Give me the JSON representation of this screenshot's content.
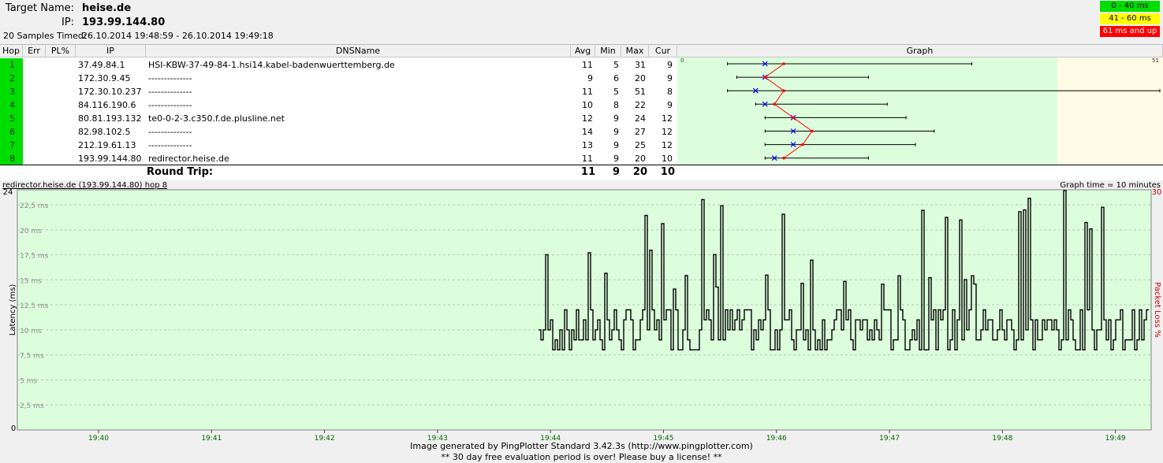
{
  "header": {
    "target_label": "Target Name:",
    "target_value": "heise.de",
    "ip_label": "IP:",
    "ip_value": "193.99.144.80",
    "samples_label": "20 Samples Timed:",
    "samples_value": "26.10.2014 19:48:59 - 26.10.2014 19:49:18"
  },
  "legend": [
    {
      "label": "0 - 40 ms",
      "color": "#00dd00"
    },
    {
      "label": "41 - 60 ms",
      "color": "#ffff00"
    },
    {
      "label": "61 ms and up",
      "color": "#ff0000"
    }
  ],
  "columns": {
    "hop": "Hop",
    "err": "Err",
    "pl": "PL%",
    "ip": "IP",
    "dns": "DNSName",
    "avg": "Avg",
    "min": "Min",
    "max": "Max",
    "cur": "Cur",
    "graph": "Graph"
  },
  "hops": [
    {
      "hop": "1",
      "ip": "37.49.84.1",
      "dns": "HSI-KBW-37-49-84-1.hsi14.kabel-badenwuerttemberg.de",
      "avg": "11",
      "min": "5",
      "max": "31",
      "cur": "9"
    },
    {
      "hop": "2",
      "ip": "172.30.9.45",
      "dns": "--------------",
      "avg": "9",
      "min": "6",
      "max": "20",
      "cur": "9"
    },
    {
      "hop": "3",
      "ip": "172.30.10.237",
      "dns": "--------------",
      "avg": "11",
      "min": "5",
      "max": "51",
      "cur": "8"
    },
    {
      "hop": "4",
      "ip": "84.116.190.6",
      "dns": "--------------",
      "avg": "10",
      "min": "8",
      "max": "22",
      "cur": "9"
    },
    {
      "hop": "5",
      "ip": "80.81.193.132",
      "dns": "te0-0-2-3.c350.f.de.plusline.net",
      "avg": "12",
      "min": "9",
      "max": "24",
      "cur": "12"
    },
    {
      "hop": "6",
      "ip": "82.98.102.5",
      "dns": "--------------",
      "avg": "14",
      "min": "9",
      "max": "27",
      "cur": "12"
    },
    {
      "hop": "7",
      "ip": "212.19.61.13",
      "dns": "--------------",
      "avg": "13",
      "min": "9",
      "max": "25",
      "cur": "12"
    },
    {
      "hop": "8",
      "ip": "193.99.144.80",
      "dns": "redirector.heise.de",
      "avg": "11",
      "min": "9",
      "max": "20",
      "cur": "10"
    }
  ],
  "graph_scale": {
    "min_label": "0",
    "max_label": "51"
  },
  "round_trip": {
    "label": "Round Trip:",
    "avg": "11",
    "min": "9",
    "max": "20",
    "cur": "10"
  },
  "timeline": {
    "title": "redirector.heise.de (193.99.144.80) hop 8",
    "graph_time": "Graph time = 10 minutes",
    "y_axis_title": "Latency (ms)",
    "y2_axis_title": "Packet Loss %",
    "y_top": "24",
    "y_bottom": "0",
    "y2_top": "30",
    "gridlines": [
      "22,5 ms",
      "20 ms",
      "17,5 ms",
      "15 ms",
      "12,5 ms",
      "10 ms",
      "7,5 ms",
      "5 ms",
      "2,5 ms"
    ],
    "x_ticks": [
      "19:40",
      "19:41",
      "19:42",
      "19:43",
      "19:44",
      "19:45",
      "19:46",
      "19:47",
      "19:48",
      "19:49"
    ]
  },
  "footer": {
    "line1": "Image generated by PingPlotter Standard 3.42.3s (http://www.pingplotter.com)",
    "line2": "** 30 day free evaluation period is over!  Please buy a license! **"
  },
  "colors": {
    "hop_green": "#00dd00",
    "graph_bg": "#ddfedd",
    "graph_yellow": "#fffbe6",
    "avg_line": "#ff0000",
    "min_marker": "#0000ff",
    "tick_green": "#006600",
    "loss_red": "#cc0000"
  }
}
